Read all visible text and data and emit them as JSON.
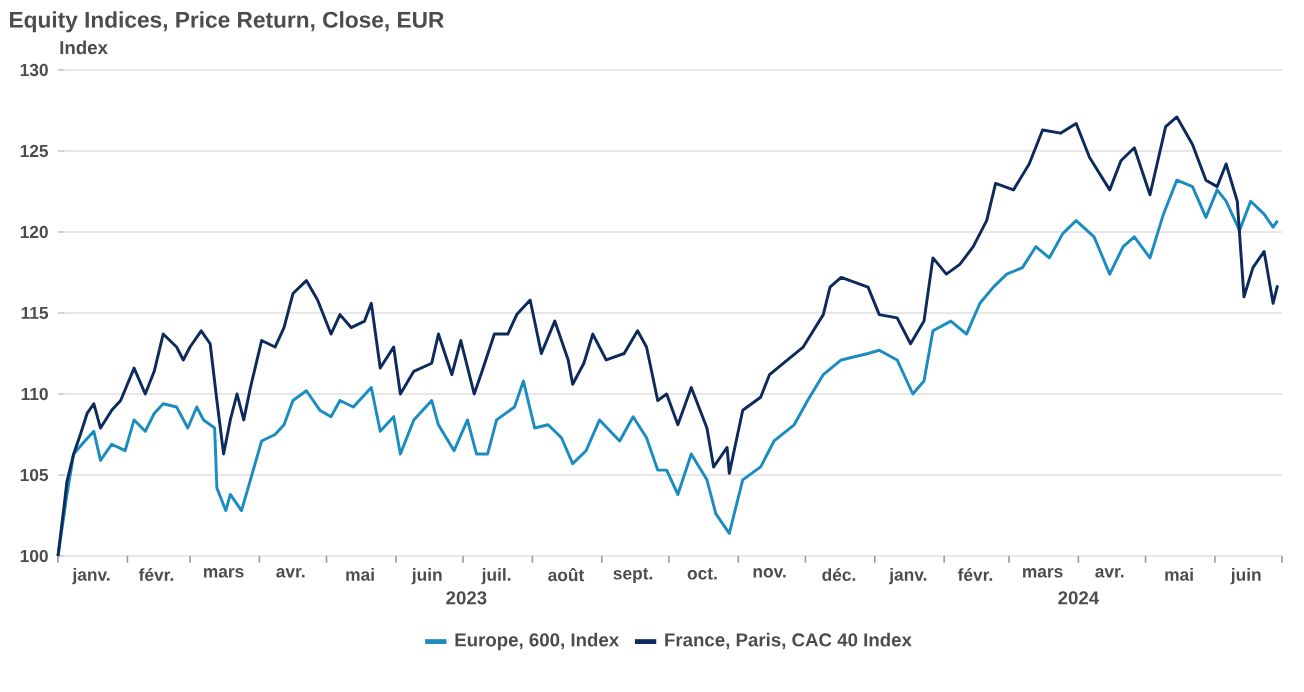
{
  "chart_data": {
    "type": "line",
    "title": "Equity Indices, Price Return, Close, EUR",
    "ylabel": "Index",
    "xlim": [
      "2023-01-01",
      "2024-07-01"
    ],
    "ylim": [
      100,
      130
    ],
    "yticks": [
      100,
      105,
      110,
      115,
      120,
      125,
      130
    ],
    "xticks": [
      {
        "value": "2023-01-01",
        "label": null
      },
      {
        "value": "2023-01-16",
        "label": "janv."
      },
      {
        "value": "2023-02-01",
        "label": null
      },
      {
        "value": "2023-02-14",
        "label": "févr."
      },
      {
        "value": "2023-03-01",
        "label": null
      },
      {
        "value": "2023-03-16",
        "label": "mars"
      },
      {
        "value": "2023-04-01",
        "label": null
      },
      {
        "value": "2023-04-15",
        "label": "avr."
      },
      {
        "value": "2023-05-01",
        "label": null
      },
      {
        "value": "2023-05-16",
        "label": "mai"
      },
      {
        "value": "2023-06-01",
        "label": null
      },
      {
        "value": "2023-06-15",
        "label": "juin"
      },
      {
        "value": "2023-07-01",
        "label": null
      },
      {
        "value": "2023-07-16",
        "label": "juil."
      },
      {
        "value": "2023-08-01",
        "label": null
      },
      {
        "value": "2023-08-16",
        "label": "août"
      },
      {
        "value": "2023-09-01",
        "label": null
      },
      {
        "value": "2023-09-15",
        "label": "sept."
      },
      {
        "value": "2023-10-01",
        "label": null
      },
      {
        "value": "2023-10-16",
        "label": "oct."
      },
      {
        "value": "2023-11-01",
        "label": null
      },
      {
        "value": "2023-11-15",
        "label": "nov."
      },
      {
        "value": "2023-12-01",
        "label": null
      },
      {
        "value": "2023-12-16",
        "label": "déc."
      },
      {
        "value": "2024-01-01",
        "label": null
      },
      {
        "value": "2024-01-16",
        "label": "janv."
      },
      {
        "value": "2024-02-01",
        "label": null
      },
      {
        "value": "2024-02-15",
        "label": "févr."
      },
      {
        "value": "2024-03-01",
        "label": null
      },
      {
        "value": "2024-03-16",
        "label": "mars"
      },
      {
        "value": "2024-04-01",
        "label": null
      },
      {
        "value": "2024-04-15",
        "label": "avr."
      },
      {
        "value": "2024-05-01",
        "label": null
      },
      {
        "value": "2024-05-16",
        "label": "mai"
      },
      {
        "value": "2024-06-01",
        "label": null
      },
      {
        "value": "2024-06-15",
        "label": "juin"
      },
      {
        "value": "2024-07-01",
        "label": null
      }
    ],
    "annotations": [
      "2023",
      "2024"
    ],
    "grid": "y",
    "legend": "bottom",
    "marker": "none",
    "line_style": "solid",
    "series": [
      {
        "name": "Europe, 600, Index",
        "color": "#1a8cc0",
        "x": [
          "2023-01-01",
          "2023-01-05",
          "2023-01-08",
          "2023-01-13",
          "2023-01-17",
          "2023-01-20",
          "2023-01-25",
          "2023-01-31",
          "2023-02-04",
          "2023-02-09",
          "2023-02-13",
          "2023-02-17",
          "2023-02-23",
          "2023-02-28",
          "2023-03-04",
          "2023-03-07",
          "2023-03-12",
          "2023-03-13",
          "2023-03-17",
          "2023-03-19",
          "2023-03-24",
          "2023-03-28",
          "2023-04-02",
          "2023-04-08",
          "2023-04-12",
          "2023-04-16",
          "2023-04-22",
          "2023-04-28",
          "2023-05-03",
          "2023-05-07",
          "2023-05-13",
          "2023-05-21",
          "2023-05-25",
          "2023-05-31",
          "2023-06-03",
          "2023-06-09",
          "2023-06-17",
          "2023-06-20",
          "2023-06-27",
          "2023-07-03",
          "2023-07-07",
          "2023-07-12",
          "2023-07-16",
          "2023-07-24",
          "2023-07-28",
          "2023-08-02",
          "2023-08-08",
          "2023-08-14",
          "2023-08-19",
          "2023-08-25",
          "2023-08-31",
          "2023-09-09",
          "2023-09-15",
          "2023-09-21",
          "2023-09-26",
          "2023-09-30",
          "2023-10-05",
          "2023-10-11",
          "2023-10-18",
          "2023-10-22",
          "2023-10-28",
          "2023-11-03",
          "2023-11-11",
          "2023-11-17",
          "2023-11-26",
          "2023-12-02",
          "2023-12-09",
          "2023-12-17",
          "2023-12-29",
          "2024-01-03",
          "2024-01-11",
          "2024-01-18",
          "2024-01-23",
          "2024-01-27",
          "2024-02-04",
          "2024-02-11",
          "2024-02-17",
          "2024-02-23",
          "2024-02-29",
          "2024-03-07",
          "2024-03-13",
          "2024-03-19",
          "2024-03-25",
          "2024-03-31",
          "2024-04-08",
          "2024-04-15",
          "2024-04-21",
          "2024-04-26",
          "2024-05-03",
          "2024-05-09",
          "2024-05-15",
          "2024-05-22",
          "2024-05-28",
          "2024-06-02",
          "2024-06-06",
          "2024-06-12",
          "2024-06-17",
          "2024-06-23",
          "2024-06-27",
          "2024-06-29"
        ],
        "values": [
          100,
          103.8,
          106.3,
          107.1,
          107.7,
          105.9,
          106.9,
          106.5,
          108.4,
          107.7,
          108.8,
          109.4,
          109.2,
          107.9,
          109.2,
          108.4,
          107.9,
          104.2,
          102.8,
          103.8,
          102.8,
          104.7,
          107.1,
          107.5,
          108.1,
          109.6,
          110.2,
          109.0,
          108.6,
          109.6,
          109.2,
          110.4,
          107.7,
          108.6,
          106.3,
          108.4,
          109.6,
          108.1,
          106.5,
          108.4,
          106.3,
          106.3,
          108.4,
          109.2,
          110.8,
          107.9,
          108.1,
          107.3,
          105.7,
          106.5,
          108.4,
          107.1,
          108.6,
          107.3,
          105.3,
          105.3,
          103.8,
          106.3,
          104.7,
          102.6,
          101.4,
          104.7,
          105.5,
          107.1,
          108.1,
          109.6,
          111.2,
          112.1,
          112.5,
          112.7,
          112.1,
          110.0,
          110.8,
          113.9,
          114.5,
          113.7,
          115.6,
          116.6,
          117.4,
          117.8,
          119.1,
          118.4,
          119.9,
          120.7,
          119.7,
          117.4,
          119.1,
          119.7,
          118.4,
          121.1,
          123.2,
          122.8,
          120.9,
          122.6,
          121.9,
          120.1,
          121.9,
          121.1,
          120.3,
          120.7
        ]
      },
      {
        "name": "France, Paris, CAC 40 Index",
        "color": "#0d2a5c",
        "x": [
          "2023-01-01",
          "2023-01-04",
          "2023-01-05",
          "2023-01-08",
          "2023-01-11",
          "2023-01-14",
          "2023-01-17",
          "2023-01-20",
          "2023-01-25",
          "2023-01-29",
          "2023-02-04",
          "2023-02-09",
          "2023-02-13",
          "2023-02-17",
          "2023-02-23",
          "2023-02-26",
          "2023-03-01",
          "2023-03-06",
          "2023-03-10",
          "2023-03-13",
          "2023-03-16",
          "2023-03-19",
          "2023-03-22",
          "2023-03-25",
          "2023-03-28",
          "2023-04-02",
          "2023-04-08",
          "2023-04-12",
          "2023-04-16",
          "2023-04-22",
          "2023-04-27",
          "2023-05-03",
          "2023-05-07",
          "2023-05-12",
          "2023-05-18",
          "2023-05-21",
          "2023-05-25",
          "2023-05-31",
          "2023-06-03",
          "2023-06-09",
          "2023-06-17",
          "2023-06-20",
          "2023-06-26",
          "2023-06-30",
          "2023-07-06",
          "2023-07-10",
          "2023-07-15",
          "2023-07-21",
          "2023-07-25",
          "2023-07-31",
          "2023-08-05",
          "2023-08-11",
          "2023-08-17",
          "2023-08-19",
          "2023-08-24",
          "2023-08-28",
          "2023-09-03",
          "2023-09-11",
          "2023-09-17",
          "2023-09-21",
          "2023-09-26",
          "2023-09-30",
          "2023-10-05",
          "2023-10-11",
          "2023-10-18",
          "2023-10-21",
          "2023-10-27",
          "2023-10-28",
          "2023-11-03",
          "2023-11-11",
          "2023-11-15",
          "2023-11-23",
          "2023-11-30",
          "2023-12-09",
          "2023-12-12",
          "2023-12-17",
          "2023-12-29",
          "2024-01-03",
          "2024-01-11",
          "2024-01-17",
          "2024-01-23",
          "2024-01-27",
          "2024-02-02",
          "2024-02-08",
          "2024-02-14",
          "2024-02-20",
          "2024-02-24",
          "2024-03-03",
          "2024-03-10",
          "2024-03-16",
          "2024-03-24",
          "2024-03-31",
          "2024-04-06",
          "2024-04-15",
          "2024-04-20",
          "2024-04-26",
          "2024-05-03",
          "2024-05-10",
          "2024-05-15",
          "2024-05-22",
          "2024-05-28",
          "2024-06-02",
          "2024-06-06",
          "2024-06-11",
          "2024-06-14",
          "2024-06-18",
          "2024-06-23",
          "2024-06-27",
          "2024-06-29"
        ],
        "values": [
          100,
          103.4,
          104.6,
          106.3,
          107.5,
          108.8,
          109.4,
          107.9,
          109.0,
          109.6,
          111.6,
          110.0,
          111.4,
          113.7,
          112.9,
          112.1,
          112.9,
          113.9,
          113.1,
          109.6,
          106.3,
          108.4,
          110.0,
          108.4,
          110.4,
          113.3,
          112.9,
          114.1,
          116.2,
          117.0,
          115.8,
          113.7,
          114.9,
          114.1,
          114.5,
          115.6,
          111.6,
          112.9,
          110.0,
          111.4,
          111.9,
          113.7,
          111.2,
          113.3,
          110.0,
          111.6,
          113.7,
          113.7,
          114.9,
          115.8,
          112.5,
          114.5,
          112.1,
          110.6,
          111.9,
          113.7,
          112.1,
          112.5,
          113.9,
          112.9,
          109.6,
          110.0,
          108.1,
          110.4,
          107.9,
          105.5,
          106.7,
          105.1,
          109.0,
          109.8,
          111.2,
          112.1,
          112.9,
          114.9,
          116.6,
          117.2,
          116.6,
          114.9,
          114.7,
          113.1,
          114.5,
          118.4,
          117.4,
          118.0,
          119.1,
          120.7,
          123.0,
          122.6,
          124.2,
          126.3,
          126.1,
          126.7,
          124.6,
          122.6,
          124.4,
          125.2,
          122.3,
          126.5,
          127.1,
          125.4,
          123.2,
          122.8,
          124.2,
          121.9,
          116.0,
          117.8,
          118.8,
          115.6,
          116.7
        ]
      }
    ]
  }
}
